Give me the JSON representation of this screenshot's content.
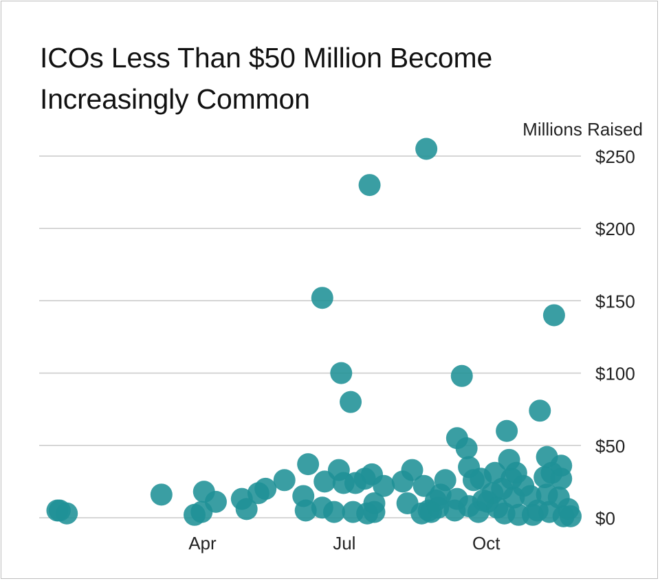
{
  "chart_data": {
    "type": "scatter",
    "title": "ICOs Less Than $50 Million Become Increasingly Common",
    "title_lines": [
      "ICOs Less Than $50 Million Become",
      "Increasingly Common"
    ],
    "ylabel": "Millions Raised",
    "xlabel": "",
    "ylim": [
      0,
      250
    ],
    "yticks": [
      {
        "value": 0,
        "label": "$0"
      },
      {
        "value": 50,
        "label": "$50"
      },
      {
        "value": 100,
        "label": "$100"
      },
      {
        "value": 150,
        "label": "$150"
      },
      {
        "value": 200,
        "label": "$200"
      },
      {
        "value": 250,
        "label": "$250"
      }
    ],
    "x_unit": "month (Jan = 1.0, start of month)",
    "xlim": [
      1.0,
      11.9
    ],
    "xticks": [
      {
        "value": 4.0,
        "label": "Apr"
      },
      {
        "value": 7.0,
        "label": "Jul"
      },
      {
        "value": 10.0,
        "label": "Oct"
      }
    ],
    "grid": true,
    "color": "#1f9196",
    "points": [
      {
        "x": 1.05,
        "y": 5
      },
      {
        "x": 1.1,
        "y": 5
      },
      {
        "x": 1.25,
        "y": 3
      },
      {
        "x": 3.25,
        "y": 16
      },
      {
        "x": 3.95,
        "y": 2
      },
      {
        "x": 4.1,
        "y": 4
      },
      {
        "x": 4.15,
        "y": 18
      },
      {
        "x": 4.4,
        "y": 11
      },
      {
        "x": 4.95,
        "y": 13
      },
      {
        "x": 5.05,
        "y": 6
      },
      {
        "x": 5.3,
        "y": 17
      },
      {
        "x": 5.45,
        "y": 20
      },
      {
        "x": 5.85,
        "y": 26
      },
      {
        "x": 6.25,
        "y": 15
      },
      {
        "x": 6.3,
        "y": 5
      },
      {
        "x": 6.35,
        "y": 37
      },
      {
        "x": 6.65,
        "y": 7
      },
      {
        "x": 6.7,
        "y": 25
      },
      {
        "x": 6.65,
        "y": 152
      },
      {
        "x": 6.9,
        "y": 4
      },
      {
        "x": 7.0,
        "y": 33
      },
      {
        "x": 7.05,
        "y": 100
      },
      {
        "x": 7.1,
        "y": 24
      },
      {
        "x": 7.25,
        "y": 80
      },
      {
        "x": 7.3,
        "y": 4
      },
      {
        "x": 7.35,
        "y": 24
      },
      {
        "x": 7.55,
        "y": 27
      },
      {
        "x": 7.6,
        "y": 3
      },
      {
        "x": 7.65,
        "y": 230
      },
      {
        "x": 7.7,
        "y": 30
      },
      {
        "x": 7.75,
        "y": 10
      },
      {
        "x": 7.75,
        "y": 4
      },
      {
        "x": 7.95,
        "y": 22
      },
      {
        "x": 8.35,
        "y": 25
      },
      {
        "x": 8.45,
        "y": 10
      },
      {
        "x": 8.55,
        "y": 33
      },
      {
        "x": 8.75,
        "y": 3
      },
      {
        "x": 8.8,
        "y": 22
      },
      {
        "x": 8.85,
        "y": 255
      },
      {
        "x": 8.9,
        "y": 5
      },
      {
        "x": 8.95,
        "y": 4
      },
      {
        "x": 9.05,
        "y": 12
      },
      {
        "x": 9.1,
        "y": 7
      },
      {
        "x": 9.15,
        "y": 16
      },
      {
        "x": 9.25,
        "y": 26
      },
      {
        "x": 9.45,
        "y": 5
      },
      {
        "x": 9.5,
        "y": 13
      },
      {
        "x": 9.5,
        "y": 55
      },
      {
        "x": 9.6,
        "y": 98
      },
      {
        "x": 9.7,
        "y": 48
      },
      {
        "x": 9.75,
        "y": 8
      },
      {
        "x": 9.75,
        "y": 35
      },
      {
        "x": 9.85,
        "y": 26
      },
      {
        "x": 9.95,
        "y": 4
      },
      {
        "x": 10.0,
        "y": 27
      },
      {
        "x": 10.05,
        "y": 12
      },
      {
        "x": 10.15,
        "y": 11
      },
      {
        "x": 10.25,
        "y": 17
      },
      {
        "x": 10.3,
        "y": 31
      },
      {
        "x": 10.35,
        "y": 7
      },
      {
        "x": 10.45,
        "y": 20
      },
      {
        "x": 10.5,
        "y": 3
      },
      {
        "x": 10.55,
        "y": 60
      },
      {
        "x": 10.6,
        "y": 40
      },
      {
        "x": 10.65,
        "y": 27
      },
      {
        "x": 10.7,
        "y": 14
      },
      {
        "x": 10.75,
        "y": 31
      },
      {
        "x": 10.8,
        "y": 2
      },
      {
        "x": 10.9,
        "y": 22
      },
      {
        "x": 11.05,
        "y": 15
      },
      {
        "x": 11.1,
        "y": 2
      },
      {
        "x": 11.2,
        "y": 5
      },
      {
        "x": 11.25,
        "y": 74
      },
      {
        "x": 11.35,
        "y": 28
      },
      {
        "x": 11.4,
        "y": 16
      },
      {
        "x": 11.4,
        "y": 42
      },
      {
        "x": 11.45,
        "y": 4
      },
      {
        "x": 11.5,
        "y": 31
      },
      {
        "x": 11.55,
        "y": 140
      },
      {
        "x": 11.65,
        "y": 14
      },
      {
        "x": 11.7,
        "y": 27
      },
      {
        "x": 11.7,
        "y": 36
      },
      {
        "x": 11.75,
        "y": 1
      },
      {
        "x": 11.85,
        "y": 6
      },
      {
        "x": 11.9,
        "y": 1
      }
    ]
  }
}
